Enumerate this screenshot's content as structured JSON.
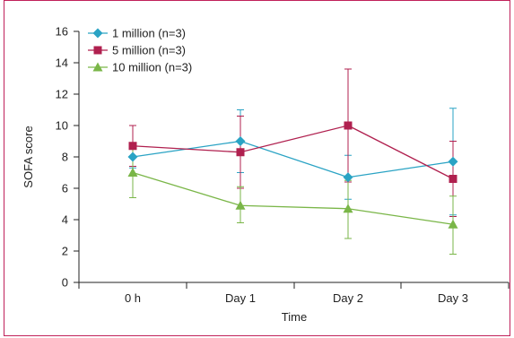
{
  "chart_data": {
    "type": "line",
    "xlabel": "Time",
    "ylabel": "SOFA score",
    "categories": [
      "0 h",
      "Day 1",
      "Day 2",
      "Day 3"
    ],
    "ylim": [
      0,
      16
    ],
    "yticks": [
      0,
      2,
      4,
      6,
      8,
      10,
      12,
      14,
      16
    ],
    "grid": false,
    "legend_position": "top-left",
    "series": [
      {
        "name": "1 million (n=3)",
        "color": "#2aa3c4",
        "marker": "diamond",
        "values": [
          8.0,
          9.0,
          6.7,
          7.7
        ],
        "err_low": [
          7.3,
          7.0,
          5.3,
          4.3
        ],
        "err_high": [
          8.7,
          11.0,
          8.1,
          11.1
        ]
      },
      {
        "name": "5 million (n=3)",
        "color": "#b0204f",
        "marker": "square",
        "values": [
          8.7,
          8.3,
          10.0,
          6.6
        ],
        "err_low": [
          7.4,
          6.0,
          6.4,
          4.2
        ],
        "err_high": [
          10.0,
          10.6,
          13.6,
          9.0
        ]
      },
      {
        "name": "10 million (n=3)",
        "color": "#7ab648",
        "marker": "triangle",
        "values": [
          7.0,
          4.9,
          4.7,
          3.7
        ],
        "err_low": [
          5.4,
          3.8,
          2.8,
          1.8
        ],
        "err_high": [
          8.5,
          6.1,
          6.5,
          5.5
        ]
      }
    ]
  }
}
